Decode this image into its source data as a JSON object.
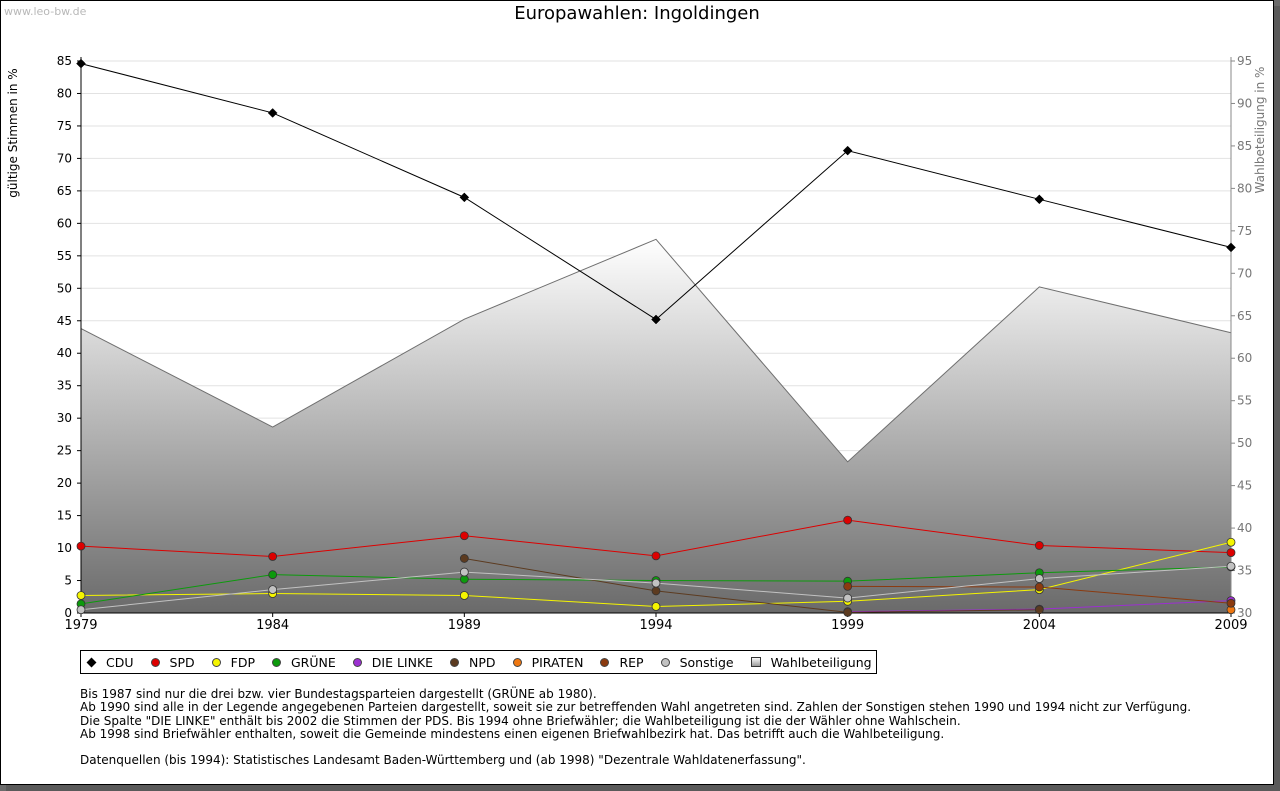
{
  "watermark": "www.leo-bw.de",
  "chart_data": {
    "type": "line",
    "title": "Europawahlen: Ingoldingen",
    "ylabel": "gültige Stimmen in %",
    "ylabel_right": "Wahlbeteiligung in %",
    "x": [
      "1979",
      "1984",
      "1989",
      "1994",
      "1999",
      "2004",
      "2009"
    ],
    "ylim": [
      0,
      85
    ],
    "ylim_right": [
      30,
      95
    ],
    "yticks": [
      "0",
      "5",
      "10",
      "15",
      "20",
      "25",
      "30",
      "35",
      "40",
      "45",
      "50",
      "55",
      "60",
      "65",
      "70",
      "75",
      "80",
      "85"
    ],
    "yticks_right": [
      "30",
      "35",
      "40",
      "45",
      "50",
      "55",
      "60",
      "65",
      "70",
      "75",
      "80",
      "85",
      "90",
      "95"
    ],
    "grid": true,
    "legend_position": "bottom",
    "series": [
      {
        "name": "CDU",
        "color": "#000000",
        "marker": "diamond",
        "values": [
          84.6,
          77.0,
          64.0,
          45.2,
          71.2,
          63.7,
          56.3
        ]
      },
      {
        "name": "SPD",
        "color": "#dd0000",
        "marker": "circle",
        "values": [
          10.3,
          8.7,
          11.9,
          8.8,
          14.3,
          10.4,
          9.3
        ]
      },
      {
        "name": "FDP",
        "color": "#f5f500",
        "marker": "circle",
        "values": [
          2.7,
          3.0,
          2.7,
          1.0,
          1.8,
          3.6,
          10.9
        ]
      },
      {
        "name": "GRÜNE",
        "color": "#0c9a0c",
        "marker": "circle",
        "values": [
          1.4,
          5.9,
          5.2,
          5.0,
          4.9,
          6.2,
          7.1
        ]
      },
      {
        "name": "DIE LINKE",
        "color": "#9b30d0",
        "marker": "circle",
        "values": [
          null,
          null,
          null,
          null,
          0.2,
          0.6,
          1.9
        ]
      },
      {
        "name": "NPD",
        "color": "#5c3b20",
        "marker": "circle",
        "values": [
          null,
          null,
          8.4,
          3.4,
          0.1,
          0.5,
          null
        ]
      },
      {
        "name": "PIRATEN",
        "color": "#ee7711",
        "marker": "circle",
        "values": [
          null,
          null,
          null,
          null,
          null,
          null,
          0.5
        ]
      },
      {
        "name": "REP",
        "color": "#8b3a0f",
        "marker": "circle",
        "values": [
          null,
          null,
          null,
          null,
          4.1,
          4.0,
          1.5
        ]
      },
      {
        "name": "Sonstige",
        "color": "#c2c2c2",
        "marker": "circle",
        "values": [
          0.5,
          3.6,
          6.3,
          4.6,
          2.3,
          5.3,
          7.2
        ]
      },
      {
        "name": "Wahlbeteiligung",
        "color": "#999999",
        "marker": "area",
        "axis": "right",
        "values": [
          63.5,
          51.9,
          64.6,
          74.0,
          47.8,
          68.4,
          63.0
        ]
      }
    ]
  },
  "notes": [
    "Bis 1987 sind nur die drei bzw. vier Bundestagsparteien dargestellt (GRÜNE ab 1980).",
    "Ab 1990 sind alle in der Legende angegebenen Parteien dargestellt, soweit sie zur betreffenden Wahl angetreten sind. Zahlen der Sonstigen stehen 1990 und 1994 nicht zur Verfügung.",
    "Die Spalte \"DIE LINKE\" enthält bis 2002 die Stimmen der PDS. Bis 1994 ohne Briefwähler; die Wahlbeteiligung ist die der Wähler ohne Wahlschein.",
    "Ab 1998 sind Briefwähler enthalten, soweit die Gemeinde mindestens einen eigenen Briefwahlbezirk hat. Das betrifft auch die Wahlbeteiligung."
  ],
  "source": "Datenquellen (bis 1994): Statistisches Landesamt Baden-Württemberg und (ab 1998) \"Dezentrale Wahldatenerfassung\"."
}
